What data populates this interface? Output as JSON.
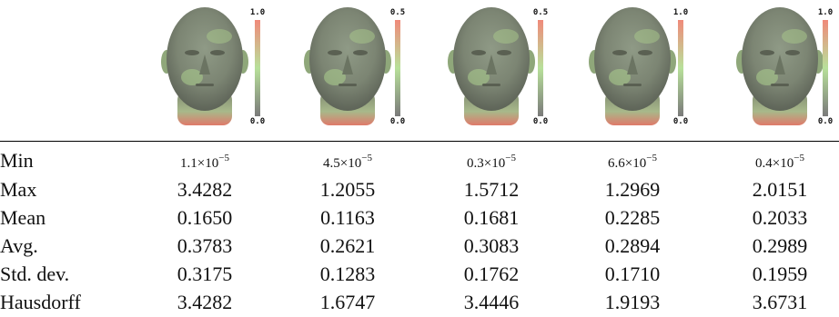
{
  "faces": [
    {
      "colorbar_max": "1.0",
      "colorbar_min": "0.0"
    },
    {
      "colorbar_max": "0.5",
      "colorbar_min": "0.0"
    },
    {
      "colorbar_max": "0.5",
      "colorbar_min": "0.0"
    },
    {
      "colorbar_max": "1.0",
      "colorbar_min": "0.0"
    },
    {
      "colorbar_max": "1.0",
      "colorbar_min": "0.0"
    }
  ],
  "table": {
    "rows": [
      {
        "label": "Min",
        "values": [
          {
            "base": "1.1×10",
            "exp": "−5"
          },
          {
            "base": "4.5×10",
            "exp": "−5"
          },
          {
            "base": "0.3×10",
            "exp": "−5"
          },
          {
            "base": "6.6×10",
            "exp": "−5"
          },
          {
            "base": "0.4×10",
            "exp": "−5"
          }
        ]
      },
      {
        "label": "Max",
        "values": [
          "3.4282",
          "1.2055",
          "1.5712",
          "1.2969",
          "2.0151"
        ]
      },
      {
        "label": "Mean",
        "values": [
          "0.1650",
          "0.1163",
          "0.1681",
          "0.2285",
          "0.2033"
        ]
      },
      {
        "label": "Avg.",
        "values": [
          "0.3783",
          "0.2621",
          "0.3083",
          "0.2894",
          "0.2989"
        ]
      },
      {
        "label": "Std. dev.",
        "values": [
          "0.3175",
          "0.1283",
          "0.1762",
          "0.1710",
          "0.1959"
        ]
      },
      {
        "label": "Hausdorff",
        "values": [
          "3.4282",
          "1.6747",
          "3.4446",
          "1.9193",
          "3.6731"
        ]
      }
    ]
  }
}
